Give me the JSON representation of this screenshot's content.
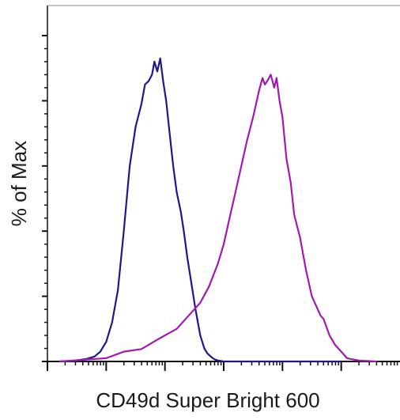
{
  "chart_data": {
    "type": "line",
    "title": "",
    "xlabel": "CD49d Super Bright 600",
    "ylabel": "% of Max",
    "x_scale": "log",
    "xlim": [
      -1,
      5
    ],
    "ylim": [
      0,
      100
    ],
    "grid": false,
    "legend": "none",
    "series": [
      {
        "color": "#1a1a8c",
        "x": [
          -0.8,
          -0.55,
          -0.33,
          -0.2,
          -0.1,
          0.0,
          0.1,
          0.2,
          0.3,
          0.4,
          0.5,
          0.6,
          0.66,
          0.72,
          0.78,
          0.82,
          0.87,
          0.92,
          0.97,
          1.02,
          1.08,
          1.14,
          1.2,
          1.27,
          1.32,
          1.38,
          1.45,
          1.52,
          1.6,
          1.67,
          1.72,
          1.8,
          1.85,
          1.9,
          2.0,
          2.2,
          2.4,
          2.7,
          3.0,
          4.0
        ],
        "y": [
          0,
          0.2,
          0.8,
          1.5,
          3,
          6,
          12,
          22,
          40,
          60,
          72,
          79,
          85,
          86,
          88,
          92,
          89,
          93,
          86,
          80,
          70,
          60,
          52,
          46,
          40,
          32,
          24,
          16,
          8,
          4,
          2.5,
          1.2,
          0.6,
          0.3,
          0,
          0,
          0,
          0,
          0,
          0
        ]
      },
      {
        "color": "#a11ab0",
        "x": [
          -0.8,
          0.0,
          0.3,
          0.6,
          0.9,
          1.2,
          1.4,
          1.6,
          1.75,
          1.9,
          2.0,
          2.1,
          2.2,
          2.3,
          2.4,
          2.5,
          2.6,
          2.66,
          2.7,
          2.74,
          2.8,
          2.86,
          2.9,
          2.95,
          3.0,
          3.07,
          3.14,
          3.2,
          3.3,
          3.4,
          3.5,
          3.6,
          3.65,
          3.7,
          3.8,
          3.9,
          4.0,
          4.1,
          4.3,
          4.6
        ],
        "y": [
          0,
          1,
          3,
          3.8,
          7,
          10,
          14,
          18,
          23,
          30,
          36,
          44,
          52,
          60,
          68,
          75,
          83,
          87,
          85,
          86,
          88,
          84,
          87,
          80,
          75,
          62,
          55,
          45,
          38,
          28,
          20,
          16,
          14,
          13,
          8,
          5,
          3,
          1,
          0.3,
          0
        ]
      }
    ]
  }
}
